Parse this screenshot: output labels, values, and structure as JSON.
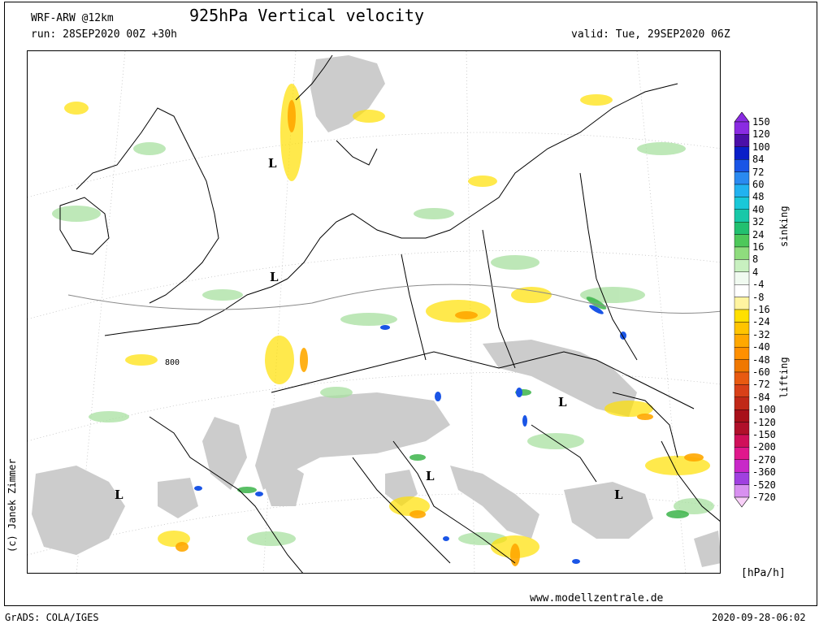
{
  "header": {
    "model": "WRF-ARW @12km",
    "run": "run: 28SEP2020 00Z +30h",
    "title": "925hPa Vertical velocity",
    "valid": "valid: Tue, 29SEP2020 06Z"
  },
  "footer": {
    "website": "www.modellzentrale.de",
    "grads": "GrADS: COLA/IGES",
    "timestamp": "2020-09-28-06:02",
    "copyright": "(c) Janek Zimmer"
  },
  "legend": {
    "unit": "[hPa/h]",
    "sinking_label": "sinking",
    "lifting_label": "lifting",
    "levels": [
      {
        "label": "150",
        "color": "#8a2be2"
      },
      {
        "label": "120",
        "color": "#4b0fa8"
      },
      {
        "label": "100",
        "color": "#0a1fc8"
      },
      {
        "label": "84",
        "color": "#1a55e6"
      },
      {
        "label": "72",
        "color": "#2a8af0"
      },
      {
        "label": "60",
        "color": "#22b2f0"
      },
      {
        "label": "48",
        "color": "#1ac8d8"
      },
      {
        "label": "40",
        "color": "#18c8a8"
      },
      {
        "label": "32",
        "color": "#22c070"
      },
      {
        "label": "24",
        "color": "#4ec85a"
      },
      {
        "label": "16",
        "color": "#8fdc7e"
      },
      {
        "label": "8",
        "color": "#c8f0c0"
      },
      {
        "label": "4",
        "color": "#f0faf0"
      },
      {
        "label": "-4",
        "color": "#ffffff"
      },
      {
        "label": "-8",
        "color": "#fff4a0"
      },
      {
        "label": "-16",
        "color": "#ffe000"
      },
      {
        "label": "-24",
        "color": "#ffc400"
      },
      {
        "label": "-32",
        "color": "#ffa800"
      },
      {
        "label": "-40",
        "color": "#ff9000"
      },
      {
        "label": "-48",
        "color": "#f07800"
      },
      {
        "label": "-60",
        "color": "#e85a10"
      },
      {
        "label": "-72",
        "color": "#d84018"
      },
      {
        "label": "-84",
        "color": "#c02818"
      },
      {
        "label": "-100",
        "color": "#a8101a"
      },
      {
        "label": "-120",
        "color": "#b0102a"
      },
      {
        "label": "-150",
        "color": "#d0105a"
      },
      {
        "label": "-200",
        "color": "#e0188c"
      },
      {
        "label": "-270",
        "color": "#c828c8"
      },
      {
        "label": "-360",
        "color": "#a040e0"
      },
      {
        "label": "-520",
        "color": "#d890f0"
      },
      {
        "label": "-720",
        "color": "#f8d0f8"
      }
    ]
  },
  "map": {
    "terrain_mask_color": "#cccccc",
    "isobar_label": "800",
    "low_markers": [
      "L",
      "L",
      "L",
      "L",
      "L",
      "L"
    ]
  }
}
